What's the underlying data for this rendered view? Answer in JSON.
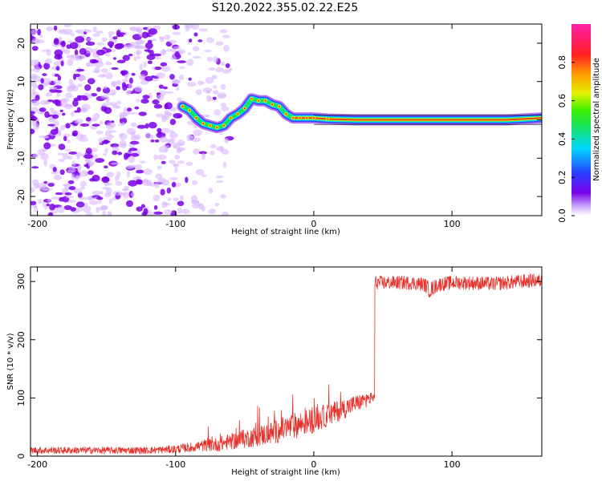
{
  "title": "S120.2022.355.02.22.E25",
  "colors": {
    "line": "#e8302a",
    "spectral_ridge_core": "#e8302a",
    "noise_dark": "#7b00e8",
    "noise_light": "#d9b8ff"
  },
  "chart_data": [
    {
      "type": "heatmap",
      "xlabel": "Height of straight line (km)",
      "ylabel": "Frequency (Hz)",
      "xlim": [
        -205,
        165
      ],
      "ylim": [
        -25,
        25
      ],
      "x_ticks": [
        "-200",
        "-100",
        "0",
        "100"
      ],
      "x_tick_values": [
        -200,
        -100,
        0,
        100
      ],
      "y_ticks": [
        "-20",
        "-10",
        "0",
        "10",
        "20"
      ],
      "y_tick_values": [
        -20,
        -10,
        0,
        10,
        20
      ],
      "colorbar": {
        "label": "Normalized spectral amplitude",
        "ticks": [
          "0.0",
          "0.2",
          "0.4",
          "0.6",
          "0.8"
        ],
        "tick_values": [
          0.0,
          0.2,
          0.4,
          0.6,
          0.8
        ],
        "range": [
          0,
          1
        ],
        "colormap": "rainbow (white-violet-blue-cyan-green-yellow-orange-red-magenta)"
      },
      "ridge": [
        {
          "x": -95,
          "y": 3.5
        },
        {
          "x": -90,
          "y": 2.5
        },
        {
          "x": -85,
          "y": 0.5
        },
        {
          "x": -80,
          "y": -1.0
        },
        {
          "x": -75,
          "y": -1.5
        },
        {
          "x": -70,
          "y": -2.0
        },
        {
          "x": -65,
          "y": -1.5
        },
        {
          "x": -60,
          "y": 0.5
        },
        {
          "x": -55,
          "y": 1.5
        },
        {
          "x": -50,
          "y": 3.0
        },
        {
          "x": -45,
          "y": 5.5
        },
        {
          "x": -40,
          "y": 5.0
        },
        {
          "x": -35,
          "y": 5.0
        },
        {
          "x": -30,
          "y": 4.0
        },
        {
          "x": -25,
          "y": 3.5
        },
        {
          "x": -20,
          "y": 1.5
        },
        {
          "x": -15,
          "y": 0.5
        },
        {
          "x": -10,
          "y": 0.5
        },
        {
          "x": -5,
          "y": 0.5
        },
        {
          "x": 0,
          "y": 0.5
        },
        {
          "x": 10,
          "y": 0.2
        },
        {
          "x": 30,
          "y": 0.0
        },
        {
          "x": 60,
          "y": 0.0
        },
        {
          "x": 100,
          "y": 0.0
        },
        {
          "x": 140,
          "y": 0.0
        },
        {
          "x": 165,
          "y": 0.5
        }
      ],
      "noise_region": {
        "x_from": -205,
        "x_to": -75
      }
    },
    {
      "type": "line",
      "xlabel": "Height of straight line (km)",
      "ylabel": "SNR (10 * v/v)",
      "xlim": [
        -205,
        165
      ],
      "ylim": [
        0,
        325
      ],
      "x_ticks": [
        "-200",
        "-100",
        "0",
        "100"
      ],
      "x_tick_values": [
        -200,
        -100,
        0,
        100
      ],
      "y_ticks": [
        "0",
        "100",
        "200",
        "300"
      ],
      "y_tick_values": [
        0,
        100,
        200,
        300
      ],
      "series": [
        {
          "x": [
            -205,
            -180,
            -160,
            -140,
            -120,
            -100,
            -90,
            -80,
            -70,
            -60,
            -50,
            -40,
            -30,
            -20,
            -10,
            0,
            10,
            20,
            30,
            40,
            43,
            44,
            50,
            60,
            70,
            80,
            84,
            90,
            100,
            110,
            120,
            130,
            140,
            150,
            160,
            165
          ],
          "y": [
            10,
            10,
            10,
            10,
            10,
            12,
            15,
            18,
            20,
            25,
            30,
            35,
            40,
            48,
            55,
            62,
            70,
            80,
            90,
            98,
            100,
            298,
            298,
            298,
            298,
            295,
            285,
            295,
            298,
            298,
            297,
            296,
            298,
            300,
            302,
            300
          ],
          "noise_amplitude": [
            6,
            6,
            6,
            6,
            6,
            7,
            8,
            10,
            12,
            14,
            16,
            18,
            20,
            22,
            22,
            22,
            20,
            18,
            15,
            12,
            10,
            12,
            12,
            12,
            12,
            12,
            14,
            12,
            12,
            12,
            12,
            12,
            12,
            12,
            12,
            12
          ]
        }
      ]
    }
  ]
}
